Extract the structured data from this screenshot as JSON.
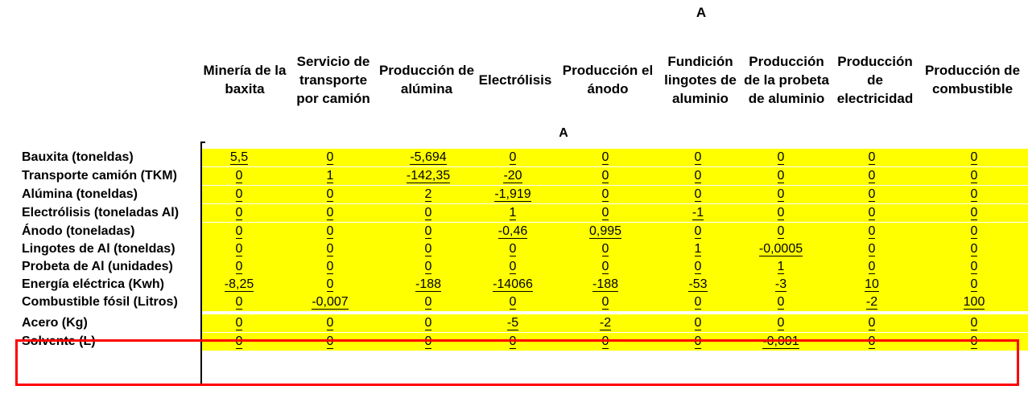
{
  "matrix_label_top": "A",
  "matrix_label_mid": "A",
  "columns": [
    "Minería de la baxita",
    "Servicio de transporte por camión",
    "Producción de alúmina",
    "Electrólisis",
    "Producción el ánodo",
    "Fundición lingotes de aluminio",
    "Producción de la probeta de aluminio",
    "Producción de electricidad",
    "Producción de combustible"
  ],
  "rows": [
    {
      "label": "Bauxita (toneldas)",
      "values": [
        "5,5",
        "0",
        "-5,694",
        "0",
        "0",
        "0",
        "0",
        "0",
        "0"
      ]
    },
    {
      "label": "Transporte camión (TKM)",
      "values": [
        "0",
        "1",
        "-142,35",
        "-20",
        "0",
        "0",
        "0",
        "0",
        "0"
      ]
    },
    {
      "label": "Alúmina (toneldas)",
      "values": [
        "0",
        "0",
        "2",
        "-1,919",
        "0",
        "0",
        "0",
        "0",
        "0"
      ]
    },
    {
      "label": "Electrólisis (toneladas Al)",
      "values": [
        "0",
        "0",
        "0",
        "1",
        "0",
        "-1",
        "0",
        "0",
        "0"
      ]
    },
    {
      "label": "Ánodo (toneladas)",
      "values": [
        "0",
        "0",
        "0",
        "-0,46",
        "0,995",
        "0",
        "0",
        "0",
        "0"
      ]
    },
    {
      "label": "Lingotes de Al (toneldas)",
      "values": [
        "0",
        "0",
        "0",
        "0",
        "0",
        "1",
        "-0,0005",
        "0",
        "0"
      ]
    },
    {
      "label": "Probeta de Al (unidades)",
      "values": [
        "0",
        "0",
        "0",
        "0",
        "0",
        "0",
        "1",
        "0",
        "0"
      ]
    },
    {
      "label": "Energía eléctrica (Kwh)",
      "values": [
        "-8,25",
        "0",
        "-188",
        "-14066",
        "-188",
        "-53",
        "-3",
        "10",
        "0"
      ]
    },
    {
      "label": "Combustible fósil (Litros)",
      "values": [
        "0",
        "-0,007",
        "0",
        "0",
        "0",
        "0",
        "0",
        "-2",
        "100"
      ]
    },
    {
      "label": "Acero (Kg)",
      "values": [
        "0",
        "0",
        "0",
        "-5",
        "-2",
        "0",
        "0",
        "0",
        "0"
      ]
    },
    {
      "label": "Solvente (L)",
      "values": [
        "0",
        "0",
        "0",
        "0",
        "0",
        "0",
        "-0,001",
        "0",
        "0"
      ]
    }
  ],
  "colors": {
    "cell_background": "#ffff00",
    "highlight_border": "#ff0000"
  }
}
